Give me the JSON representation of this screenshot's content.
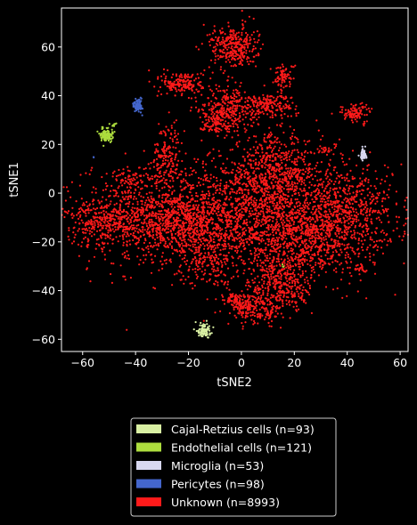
{
  "chart_data": {
    "type": "scatter",
    "title": "",
    "xlabel": "tSNE2",
    "ylabel": "tSNE1",
    "xlim": [
      -68,
      63
    ],
    "ylim": [
      -65,
      76
    ],
    "xticks": [
      -60,
      -40,
      -20,
      0,
      20,
      40,
      60
    ],
    "yticks": [
      -60,
      -40,
      -20,
      0,
      20,
      40,
      60
    ],
    "grid": false,
    "legend_placement": "bottom-center",
    "background": "#000000",
    "series": [
      {
        "name": "Unknown (n=8993)",
        "color": "#ff1a1a",
        "count": 8993,
        "clusters": [
          {
            "cx": 0,
            "cy": -10,
            "sx": 28,
            "sy": 11,
            "n": 2600
          },
          {
            "cx": 12,
            "cy": 10,
            "sx": 9,
            "sy": 7,
            "n": 500
          },
          {
            "cx": 38,
            "cy": -8,
            "sx": 9,
            "sy": 10,
            "n": 500
          },
          {
            "cx": -50,
            "cy": -12,
            "sx": 8,
            "sy": 5,
            "n": 350
          },
          {
            "cx": -25,
            "cy": -12,
            "sx": 7,
            "sy": 6,
            "n": 350
          },
          {
            "cx": -28,
            "cy": 15,
            "sx": 3,
            "sy": 7,
            "n": 180
          },
          {
            "cx": -3,
            "cy": 60,
            "sx": 4.5,
            "sy": 4.5,
            "n": 320
          },
          {
            "cx": -22,
            "cy": 45,
            "sx": 4,
            "sy": 2.5,
            "n": 180
          },
          {
            "cx": -5,
            "cy": 35,
            "sx": 5,
            "sy": 5,
            "n": 280
          },
          {
            "cx": -10,
            "cy": 30,
            "sx": 3,
            "sy": 3,
            "n": 100
          },
          {
            "cx": 10,
            "cy": 36,
            "sx": 5,
            "sy": 2.5,
            "n": 180
          },
          {
            "cx": 16,
            "cy": 48,
            "sx": 2,
            "sy": 2.5,
            "n": 80
          },
          {
            "cx": 43,
            "cy": 33,
            "sx": 3,
            "sy": 2,
            "n": 100
          },
          {
            "cx": 15,
            "cy": -38,
            "sx": 6,
            "sy": 6,
            "n": 350
          },
          {
            "cx": 5,
            "cy": -48,
            "sx": 5,
            "sy": 3,
            "n": 180
          },
          {
            "cx": -2,
            "cy": -44,
            "sx": 3,
            "sy": 1.5,
            "n": 80
          },
          {
            "cx": -42,
            "cy": 5,
            "sx": 3,
            "sy": 3,
            "n": 80
          },
          {
            "cx": -12,
            "cy": -28,
            "sx": 5,
            "sy": 6,
            "n": 150
          },
          {
            "cx": 25,
            "cy": -22,
            "sx": 8,
            "sy": 6,
            "n": 300
          },
          {
            "cx": 45,
            "cy": -31,
            "sx": 1,
            "sy": 1,
            "n": 20
          },
          {
            "cx": 32,
            "cy": 18,
            "sx": 1.2,
            "sy": 1.2,
            "n": 20
          }
        ]
      },
      {
        "name": "Cajal-Retzius cells (n=93)",
        "color": "#d9f0a3",
        "count": 93,
        "clusters": [
          {
            "cx": -14,
            "cy": -56,
            "sx": 1.2,
            "sy": 1.6,
            "n": 93
          }
        ]
      },
      {
        "name": "Endothelial cells (n=121)",
        "color": "#addd3e",
        "count": 121,
        "clusters": [
          {
            "cx": -51,
            "cy": 24,
            "sx": 1.2,
            "sy": 1.4,
            "n": 110
          },
          {
            "cx": -48,
            "cy": 28,
            "sx": 0.5,
            "sy": 0.6,
            "n": 8
          },
          {
            "cx": 16,
            "cy": -30,
            "sx": 0.3,
            "sy": 0.3,
            "n": 3
          }
        ]
      },
      {
        "name": "Microglia (n=53)",
        "color": "#d8d8f0",
        "count": 53,
        "clusters": [
          {
            "cx": 46,
            "cy": 16,
            "sx": 0.6,
            "sy": 1.2,
            "n": 53
          }
        ]
      },
      {
        "name": "Pericytes (n=98)",
        "color": "#4466cc",
        "count": 98,
        "clusters": [
          {
            "cx": -39,
            "cy": 36,
            "sx": 0.8,
            "sy": 1.3,
            "n": 96
          },
          {
            "cx": -56,
            "cy": 15,
            "sx": 0.2,
            "sy": 0.2,
            "n": 2
          }
        ]
      }
    ],
    "legend_order": [
      "Cajal-Retzius cells (n=93)",
      "Endothelial cells (n=121)",
      "Microglia (n=53)",
      "Pericytes (n=98)",
      "Unknown (n=8993)"
    ]
  }
}
